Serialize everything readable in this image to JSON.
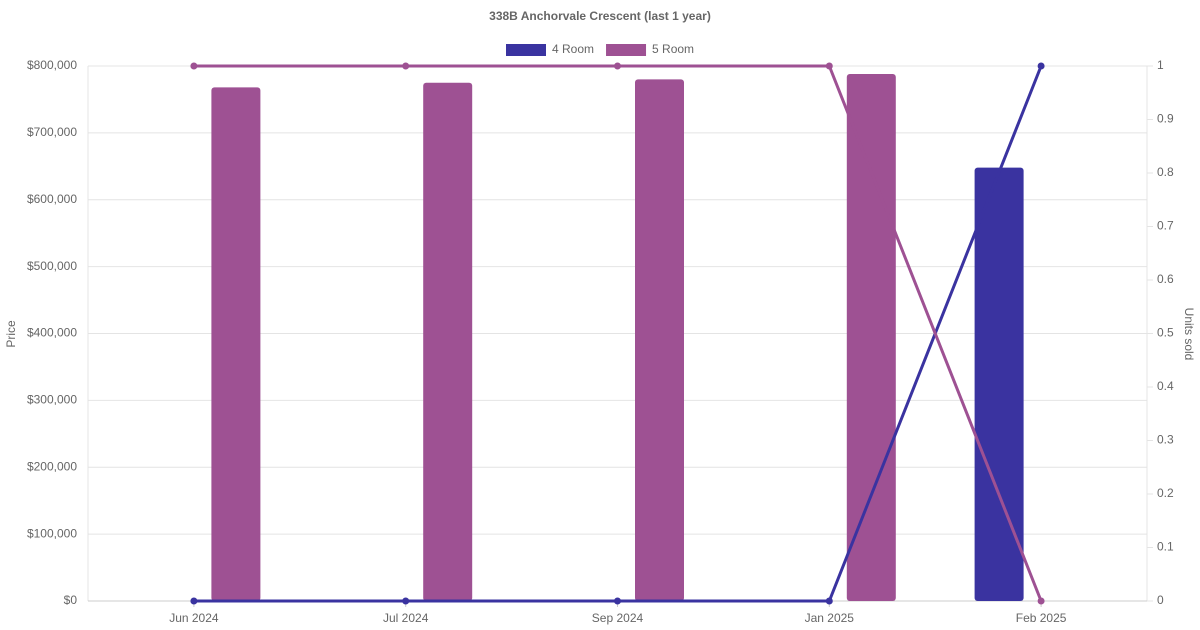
{
  "chart_data": {
    "type": "bar-line",
    "title": "338B Anchorvale Crescent (last 1 year)",
    "y_label": "Price",
    "y2_label": "Units sold",
    "categories": [
      "Jun 2024",
      "Jul 2024",
      "Sep 2024",
      "Jan 2025",
      "Feb 2025"
    ],
    "series": [
      {
        "name": "4 Room",
        "color": "#3a33a0",
        "values": [
          null,
          null,
          null,
          null,
          648000
        ],
        "units": [
          0,
          0,
          0,
          0,
          1
        ]
      },
      {
        "name": "5 Room",
        "color": "#9e5193",
        "values": [
          768000,
          775000,
          780000,
          788000,
          null
        ],
        "units": [
          1,
          1,
          1,
          1,
          0
        ]
      }
    ],
    "ylim": [
      0,
      800000
    ],
    "yticks": [
      {
        "value": 0,
        "label": "$0"
      },
      {
        "value": 100000,
        "label": "$100,000"
      },
      {
        "value": 200000,
        "label": "$200,000"
      },
      {
        "value": 300000,
        "label": "$300,000"
      },
      {
        "value": 400000,
        "label": "$400,000"
      },
      {
        "value": 500000,
        "label": "$500,000"
      },
      {
        "value": 600000,
        "label": "$600,000"
      },
      {
        "value": 700000,
        "label": "$700,000"
      },
      {
        "value": 800000,
        "label": "$800,000"
      }
    ],
    "y2lim": [
      0,
      1
    ],
    "y2ticks": [
      0,
      0.1,
      0.2,
      0.3,
      0.4,
      0.5,
      0.6,
      0.7,
      0.8,
      0.9,
      1
    ],
    "grid": true
  }
}
